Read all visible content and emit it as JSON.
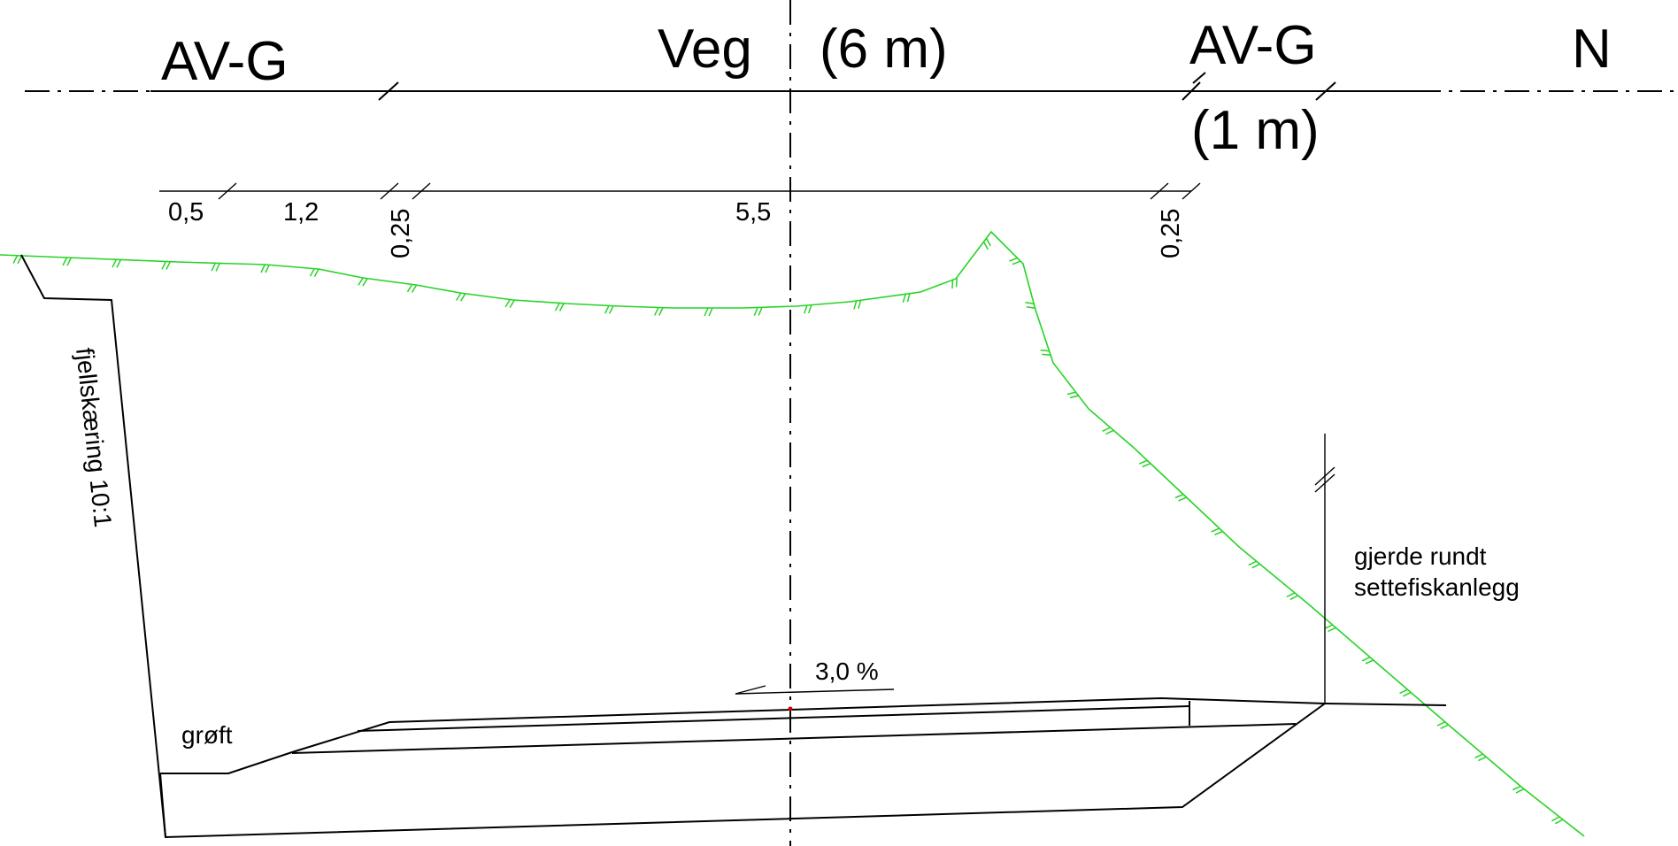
{
  "header": {
    "left_zone": "AV-G",
    "road_label": "Veg",
    "road_width": "(6 m)",
    "right_zone": "AV-G",
    "right_width": "(1 m)",
    "north_side": "N"
  },
  "dimensions": {
    "d1": "0,5",
    "d2": "1,2",
    "d3": "0,25",
    "d4": "5,5",
    "d5": "0,25"
  },
  "annotations": {
    "rock_cut": "fjellskæring 10:1",
    "fence_line1": "gjerde rundt",
    "fence_line2": "settefiskanlegg",
    "slope": "3,0 %",
    "ditch": "grøft"
  },
  "colors": {
    "terrain": "#27d327",
    "linework": "#000000",
    "marker": "#cc0000"
  }
}
